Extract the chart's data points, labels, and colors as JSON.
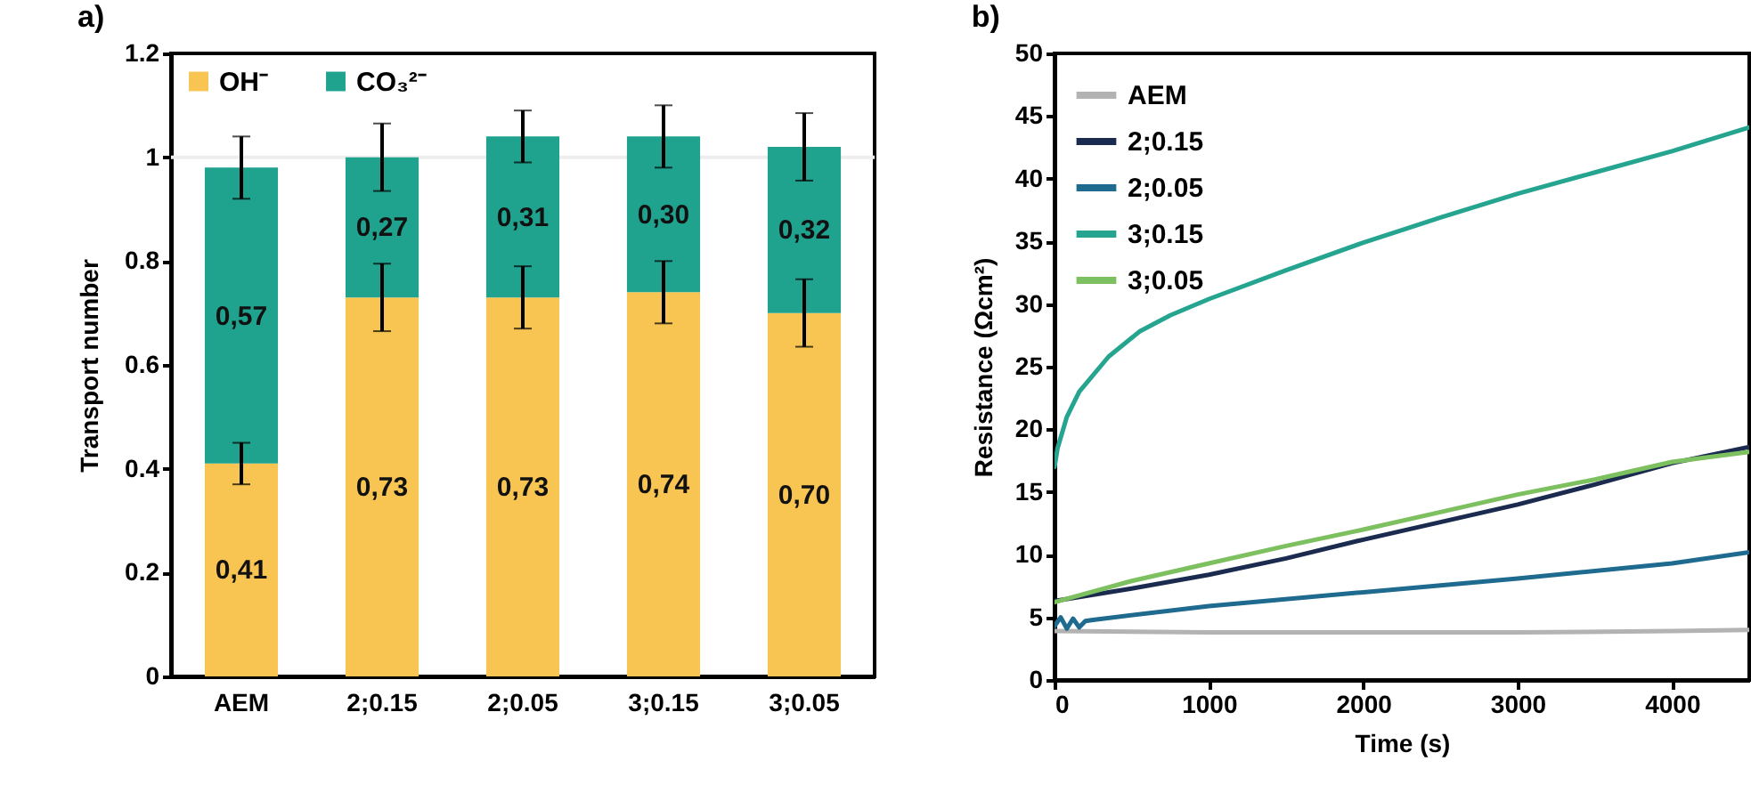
{
  "chart_data": [
    {
      "type": "bar",
      "title": "a)",
      "ylabel": "Transport number",
      "categories": [
        "AEM",
        "2;0.15",
        "2;0.05",
        "3;0.15",
        "3;0.05"
      ],
      "stacked": true,
      "legend": "top left",
      "ylim": [
        0,
        1.2
      ],
      "yticks": [
        0,
        0.2,
        0.4,
        0.6,
        0.8,
        1,
        1.2
      ],
      "ref_lines": [
        {
          "axis": "y",
          "value": 1,
          "color": "#eeeeee"
        }
      ],
      "series": [
        {
          "name": "OH⁻",
          "color": "#f8c553",
          "values": [
            0.41,
            0.73,
            0.73,
            0.74,
            0.7
          ],
          "value_labels": [
            "0,41",
            "0,73",
            "0,73",
            "0,74",
            "0,70"
          ],
          "errors": [
            0.04,
            0.065,
            0.06,
            0.06,
            0.065
          ]
        },
        {
          "name": "CO₃²⁻",
          "color": "#1fa38f",
          "values": [
            0.57,
            0.27,
            0.31,
            0.3,
            0.32
          ],
          "value_labels": [
            "0,57",
            "0,27",
            "0,31",
            "0,30",
            "0,32"
          ],
          "errors": [
            0.06,
            0.065,
            0.05,
            0.06,
            0.065
          ]
        }
      ]
    },
    {
      "type": "line",
      "title": "b)",
      "xlabel": "Time (s)",
      "ylabel": "Resistance (Ωcm²)",
      "xlim": [
        0,
        4500
      ],
      "xticks": [
        0,
        1000,
        2000,
        3000,
        4000
      ],
      "ylim": [
        0,
        50
      ],
      "yticks": [
        0,
        5,
        10,
        15,
        20,
        25,
        30,
        35,
        40,
        45,
        50
      ],
      "legend": "top left",
      "series": [
        {
          "name": "AEM",
          "color": "#b3b3b3",
          "x": [
            0,
            1000,
            2000,
            3000,
            4000,
            4500
          ],
          "values": [
            3.9,
            3.8,
            3.8,
            3.8,
            3.9,
            4.0
          ]
        },
        {
          "name": "2;0.15",
          "color": "#1b2a4f",
          "x": [
            0,
            500,
            1000,
            1500,
            2000,
            2500,
            3000,
            3500,
            4000,
            4500
          ],
          "values": [
            6.3,
            7.3,
            8.4,
            9.7,
            11.2,
            12.6,
            14.0,
            15.6,
            17.3,
            18.6
          ]
        },
        {
          "name": "2;0.05",
          "color": "#1f6a8f",
          "x": [
            0,
            40,
            80,
            120,
            160,
            200,
            250,
            1000,
            2000,
            3000,
            4000,
            4500
          ],
          "values": [
            4.3,
            5.0,
            4.1,
            4.9,
            4.2,
            4.7,
            4.8,
            5.9,
            7.0,
            8.1,
            9.3,
            10.2
          ]
        },
        {
          "name": "3;0.15",
          "color": "#25a58f",
          "x": [
            0,
            20,
            80,
            160,
            350,
            550,
            750,
            1000,
            1500,
            2000,
            2500,
            3000,
            3500,
            4000,
            4500
          ],
          "values": [
            17,
            18.5,
            21,
            23,
            25.8,
            27.8,
            29.1,
            30.4,
            32.7,
            34.9,
            36.9,
            38.8,
            40.5,
            42.2,
            44.1
          ]
        },
        {
          "name": "3;0.05",
          "color": "#7dc05f",
          "x": [
            0,
            500,
            1000,
            1500,
            2000,
            2500,
            3000,
            3500,
            4000,
            4500
          ],
          "values": [
            6.2,
            7.9,
            9.3,
            10.7,
            12.0,
            13.4,
            14.8,
            16.0,
            17.4,
            18.2
          ]
        }
      ]
    }
  ]
}
